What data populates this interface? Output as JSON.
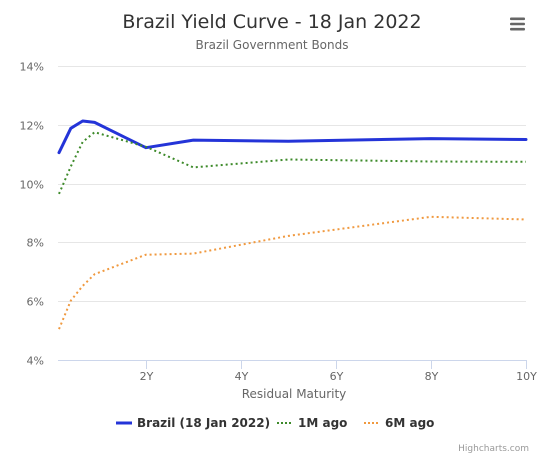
{
  "chart_data": {
    "type": "line",
    "title": "Brazil Yield Curve - 18 Jan 2022",
    "subtitle": "Brazil Government Bonds",
    "xlabel": "Residual Maturity",
    "ylabel": "",
    "x_unit": "years",
    "xlim": [
      0.15,
      10
    ],
    "x_ticks": [
      {
        "value": 2,
        "label": "2Y"
      },
      {
        "value": 4,
        "label": "4Y"
      },
      {
        "value": 6,
        "label": "6Y"
      },
      {
        "value": 8,
        "label": "8Y"
      },
      {
        "value": 10,
        "label": "10Y"
      }
    ],
    "ylim": [
      4,
      14
    ],
    "y_ticks": [
      {
        "value": 4,
        "label": "4%"
      },
      {
        "value": 6,
        "label": "6%"
      },
      {
        "value": 8,
        "label": "8%"
      },
      {
        "value": 10,
        "label": "10%"
      },
      {
        "value": 12,
        "label": "12%"
      },
      {
        "value": 14,
        "label": "14%"
      }
    ],
    "grid": "horizontal",
    "legend_position": "bottom-center",
    "series": [
      {
        "name": "Brazil (18 Jan 2022)",
        "color": "#2434d8",
        "style": "solid",
        "x": [
          0.17,
          0.42,
          0.67,
          0.92,
          2.0,
          3.0,
          5.0,
          8.0,
          10.0
        ],
        "y": [
          11.05,
          11.88,
          12.13,
          12.08,
          11.22,
          11.48,
          11.44,
          11.53,
          11.5
        ]
      },
      {
        "name": "1M ago",
        "color": "#3d8a2a",
        "style": "dotted",
        "x": [
          0.17,
          0.42,
          0.67,
          0.92,
          2.0,
          3.0,
          5.0,
          8.0,
          10.0
        ],
        "y": [
          9.65,
          10.58,
          11.42,
          11.75,
          11.25,
          10.55,
          10.82,
          10.75,
          10.74
        ]
      },
      {
        "name": "6M ago",
        "color": "#f0993f",
        "style": "dotted",
        "x": [
          0.17,
          0.42,
          0.67,
          0.92,
          2.0,
          3.0,
          5.0,
          8.0,
          10.0
        ],
        "y": [
          5.05,
          6.02,
          6.52,
          6.92,
          7.58,
          7.62,
          8.22,
          8.87,
          8.78
        ]
      }
    ]
  },
  "credits": "Highcharts.com",
  "menu_icon": "hamburger-menu-icon"
}
